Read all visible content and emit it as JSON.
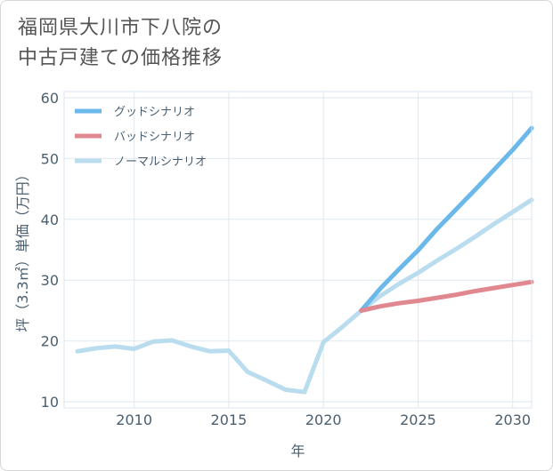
{
  "title_lines": [
    "福岡県大川市下八院の",
    "中古戸建ての価格推移"
  ],
  "chart_data": {
    "type": "line",
    "xlabel": "年",
    "ylabel": "坪（3.3㎡）単価（万円）",
    "xlim": [
      2006.3,
      2031
    ],
    "ylim": [
      9,
      61
    ],
    "xticks": [
      2010,
      2015,
      2020,
      2025,
      2030
    ],
    "yticks": [
      10,
      20,
      30,
      40,
      50,
      60
    ],
    "grid": true,
    "legend_position": "top-left",
    "series": [
      {
        "name": "グッドシナリオ",
        "color": "#6bb8ea",
        "x": [
          2022,
          2023,
          2024,
          2025,
          2026,
          2027,
          2028,
          2029,
          2030,
          2031
        ],
        "values": [
          25.0,
          28.6,
          31.8,
          34.9,
          38.4,
          41.6,
          44.8,
          48.1,
          51.4,
          55.0
        ]
      },
      {
        "name": "バッドシナリオ",
        "color": "#e0878f",
        "x": [
          2022,
          2023,
          2024,
          2025,
          2026,
          2027,
          2028,
          2029,
          2030,
          2031
        ],
        "values": [
          25.0,
          25.7,
          26.2,
          26.6,
          27.1,
          27.6,
          28.2,
          28.7,
          29.2,
          29.7
        ]
      },
      {
        "name": "ノーマルシナリオ",
        "color": "#b9dcee",
        "x": [
          2007,
          2008,
          2009,
          2010,
          2011,
          2012,
          2013,
          2014,
          2015,
          2016,
          2017,
          2018,
          2019,
          2020,
          2021,
          2022,
          2023,
          2024,
          2025,
          2026,
          2027,
          2028,
          2029,
          2030,
          2031
        ],
        "values": [
          18.3,
          18.8,
          19.1,
          18.7,
          19.9,
          20.1,
          19.1,
          18.3,
          18.4,
          14.9,
          13.5,
          12.0,
          11.6,
          19.8,
          22.3,
          25.0,
          27.4,
          29.4,
          31.2,
          33.2,
          35.1,
          37.1,
          39.2,
          41.2,
          43.2
        ]
      }
    ]
  }
}
